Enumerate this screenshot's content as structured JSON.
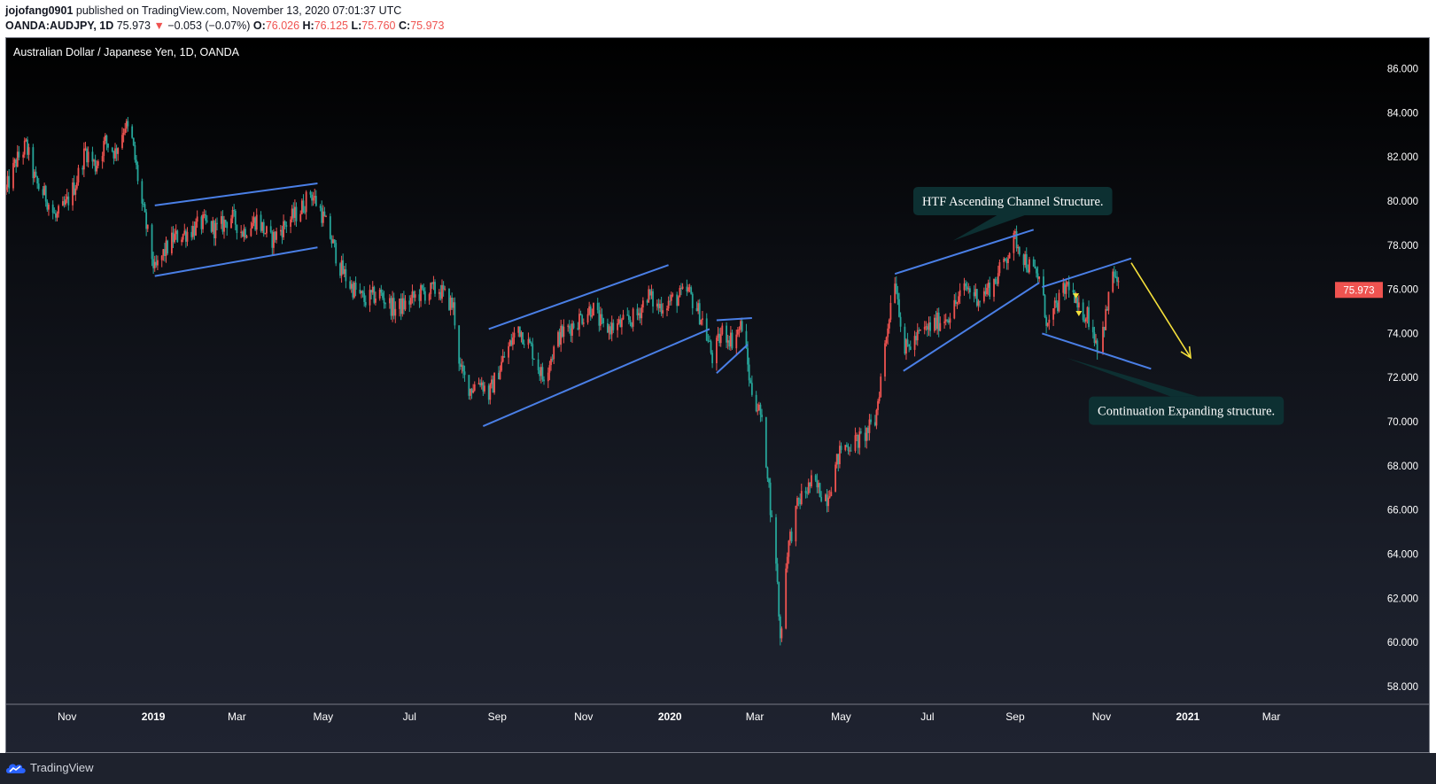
{
  "header": {
    "author": "jojofang0901",
    "published_text": "published on TradingView.com, November 13, 2020 07:01:37 UTC",
    "symbol": "OANDA:AUDJPY, 1D",
    "last": "75.973",
    "change_arrow": "▼",
    "change": "−0.053 (−0.07%)",
    "o_label": "O:",
    "o_value": "76.026",
    "h_label": "H:",
    "h_value": "76.125",
    "l_label": "L:",
    "l_value": "75.760",
    "c_label": "C:",
    "c_value": "75.973"
  },
  "footer": {
    "brand": "TradingView"
  },
  "colors": {
    "up": "#ef5350",
    "down": "#26a69a",
    "trendline": "#4a7fe6",
    "callout_bg": "#0d3032",
    "callout_text": "#ffffff",
    "projection": "#f5e03b",
    "price_badge": "#ef5350"
  },
  "chart_data": {
    "type": "candlestick",
    "title": "Australian Dollar / Japanese Yen, 1D, OANDA",
    "y_ticks": [
      "86.000",
      "84.000",
      "82.000",
      "80.000",
      "78.000",
      "76.000",
      "74.000",
      "72.000",
      "70.000",
      "68.000",
      "66.000",
      "64.000",
      "62.000",
      "60.000",
      "58.000"
    ],
    "y_range": [
      57.6,
      86.5
    ],
    "x_ticks": [
      {
        "label": "Nov",
        "date": "2018-11-01"
      },
      {
        "label": "2019",
        "date": "2019-01-01"
      },
      {
        "label": "Mar",
        "date": "2019-03-01"
      },
      {
        "label": "May",
        "date": "2019-05-01"
      },
      {
        "label": "Jul",
        "date": "2019-07-01"
      },
      {
        "label": "Sep",
        "date": "2019-09-01"
      },
      {
        "label": "Nov",
        "date": "2019-11-01"
      },
      {
        "label": "2020",
        "date": "2020-01-01"
      },
      {
        "label": "Mar",
        "date": "2020-03-01"
      },
      {
        "label": "May",
        "date": "2020-05-01"
      },
      {
        "label": "Jul",
        "date": "2020-07-01"
      },
      {
        "label": "Sep",
        "date": "2020-09-01"
      },
      {
        "label": "Nov",
        "date": "2020-11-01"
      },
      {
        "label": "2021",
        "date": "2021-01-01"
      },
      {
        "label": "Mar",
        "date": "2021-03-01"
      }
    ],
    "x_range": [
      "2018-09-19",
      "2021-04-15"
    ],
    "last_price": "75.973",
    "price_path": [
      [
        "2018-09-19",
        80.5
      ],
      [
        "2018-09-26",
        81.8
      ],
      [
        "2018-10-03",
        82.5
      ],
      [
        "2018-10-10",
        80.8
      ],
      [
        "2018-10-17",
        80.2
      ],
      [
        "2018-10-24",
        79.2
      ],
      [
        "2018-10-31",
        79.8
      ],
      [
        "2018-11-07",
        80.8
      ],
      [
        "2018-11-14",
        82.3
      ],
      [
        "2018-11-21",
        81.6
      ],
      [
        "2018-11-28",
        82.7
      ],
      [
        "2018-12-05",
        82.2
      ],
      [
        "2018-12-12",
        83.5
      ],
      [
        "2018-12-17",
        82.7
      ],
      [
        "2018-12-24",
        79.8
      ],
      [
        "2018-12-28",
        78.5
      ],
      [
        "2019-01-02",
        76.8
      ],
      [
        "2019-01-08",
        77.6
      ],
      [
        "2019-01-15",
        78.3
      ],
      [
        "2019-01-25",
        78.6
      ],
      [
        "2019-02-05",
        79.0
      ],
      [
        "2019-02-15",
        78.7
      ],
      [
        "2019-02-25",
        79.3
      ],
      [
        "2019-03-05",
        78.6
      ],
      [
        "2019-03-15",
        79.2
      ],
      [
        "2019-03-25",
        78.2
      ],
      [
        "2019-04-05",
        79.0
      ],
      [
        "2019-04-15",
        79.6
      ],
      [
        "2019-04-22",
        80.4
      ],
      [
        "2019-04-29",
        79.6
      ],
      [
        "2019-05-06",
        78.4
      ],
      [
        "2019-05-13",
        77.0
      ],
      [
        "2019-05-20",
        76.2
      ],
      [
        "2019-05-30",
        75.5
      ],
      [
        "2019-06-10",
        75.8
      ],
      [
        "2019-06-20",
        75.1
      ],
      [
        "2019-06-28",
        75.3
      ],
      [
        "2019-07-08",
        75.8
      ],
      [
        "2019-07-22",
        76.0
      ],
      [
        "2019-08-01",
        75.2
      ],
      [
        "2019-08-06",
        72.3
      ],
      [
        "2019-08-13",
        71.5
      ],
      [
        "2019-08-20",
        71.9
      ],
      [
        "2019-08-26",
        71.2
      ],
      [
        "2019-09-05",
        72.8
      ],
      [
        "2019-09-16",
        74.3
      ],
      [
        "2019-09-26",
        73.2
      ],
      [
        "2019-10-03",
        72.0
      ],
      [
        "2019-10-15",
        73.9
      ],
      [
        "2019-10-28",
        74.6
      ],
      [
        "2019-11-07",
        75.2
      ],
      [
        "2019-11-15",
        74.2
      ],
      [
        "2019-11-28",
        74.4
      ],
      [
        "2019-12-09",
        74.8
      ],
      [
        "2019-12-16",
        75.8
      ],
      [
        "2019-12-23",
        75.2
      ],
      [
        "2020-01-06",
        75.6
      ],
      [
        "2020-01-14",
        75.9
      ],
      [
        "2020-01-24",
        74.6
      ],
      [
        "2020-01-31",
        72.9
      ],
      [
        "2020-02-07",
        74.1
      ],
      [
        "2020-02-14",
        73.7
      ],
      [
        "2020-02-21",
        74.4
      ],
      [
        "2020-02-27",
        71.6
      ],
      [
        "2020-03-05",
        70.3
      ],
      [
        "2020-03-10",
        67.8
      ],
      [
        "2020-03-13",
        65.4
      ],
      [
        "2020-03-16",
        63.8
      ],
      [
        "2020-03-19",
        60.1
      ],
      [
        "2020-03-24",
        64.2
      ],
      [
        "2020-04-01",
        66.4
      ],
      [
        "2020-04-10",
        67.2
      ],
      [
        "2020-04-21",
        66.6
      ],
      [
        "2020-05-01",
        68.8
      ],
      [
        "2020-05-15",
        69.2
      ],
      [
        "2020-05-25",
        70.0
      ],
      [
        "2020-06-05",
        75.4
      ],
      [
        "2020-06-08",
        76.6
      ],
      [
        "2020-06-15",
        73.2
      ],
      [
        "2020-06-26",
        74.0
      ],
      [
        "2020-07-08",
        74.5
      ],
      [
        "2020-07-17",
        74.9
      ],
      [
        "2020-07-28",
        76.1
      ],
      [
        "2020-08-07",
        75.6
      ],
      [
        "2020-08-18",
        76.4
      ],
      [
        "2020-08-28",
        77.8
      ],
      [
        "2020-09-01",
        78.3
      ],
      [
        "2020-09-10",
        77.1
      ],
      [
        "2020-09-18",
        76.5
      ],
      [
        "2020-09-24",
        74.3
      ],
      [
        "2020-10-02",
        75.5
      ],
      [
        "2020-10-09",
        76.3
      ],
      [
        "2020-10-15",
        75.0
      ],
      [
        "2020-10-22",
        74.9
      ],
      [
        "2020-10-30",
        73.3
      ],
      [
        "2020-11-05",
        75.1
      ],
      [
        "2020-11-09",
        76.9
      ],
      [
        "2020-11-13",
        75.97
      ]
    ],
    "drawings": [
      {
        "type": "trendline",
        "points": [
          [
            "2019-01-02",
            79.8
          ],
          [
            "2019-04-27",
            80.8
          ]
        ]
      },
      {
        "type": "trendline",
        "points": [
          [
            "2019-01-02",
            76.6
          ],
          [
            "2019-04-27",
            77.9
          ]
        ]
      },
      {
        "type": "trendline",
        "points": [
          [
            "2019-08-26",
            74.2
          ],
          [
            "2019-12-31",
            77.1
          ]
        ]
      },
      {
        "type": "trendline",
        "points": [
          [
            "2019-08-22",
            69.8
          ],
          [
            "2020-01-29",
            74.2
          ]
        ]
      },
      {
        "type": "trendline",
        "points": [
          [
            "2020-02-03",
            74.6
          ],
          [
            "2020-02-28",
            74.7
          ]
        ]
      },
      {
        "type": "trendline",
        "points": [
          [
            "2020-02-03",
            72.2
          ],
          [
            "2020-02-25",
            73.5
          ]
        ]
      },
      {
        "type": "trendline",
        "points": [
          [
            "2020-06-08",
            76.7
          ],
          [
            "2020-09-14",
            78.7
          ]
        ]
      },
      {
        "type": "trendline",
        "points": [
          [
            "2020-06-14",
            72.3
          ],
          [
            "2020-09-18",
            76.3
          ]
        ]
      },
      {
        "type": "trendline",
        "points": [
          [
            "2020-09-20",
            76.1
          ],
          [
            "2020-11-22",
            77.4
          ]
        ]
      },
      {
        "type": "trendline",
        "points": [
          [
            "2020-09-20",
            74.0
          ],
          [
            "2020-12-06",
            72.4
          ]
        ]
      }
    ],
    "projection": [
      [
        "2020-11-22",
        77.2
      ],
      [
        "2021-01-03",
        72.9
      ]
    ],
    "markers": [
      [
        "2020-10-14",
        75.7
      ],
      [
        "2020-10-16",
        74.9
      ]
    ],
    "annotations": [
      {
        "text": "HTF Ascending Channel Structure.",
        "anchor": [
          "2020-06-21",
          80.0
        ],
        "pointer": [
          "2020-07-19",
          78.2
        ]
      },
      {
        "text": "Continuation Expanding structure.",
        "anchor": [
          "2020-10-23",
          70.5
        ],
        "pointer": [
          "2020-10-07",
          72.9
        ]
      }
    ]
  }
}
